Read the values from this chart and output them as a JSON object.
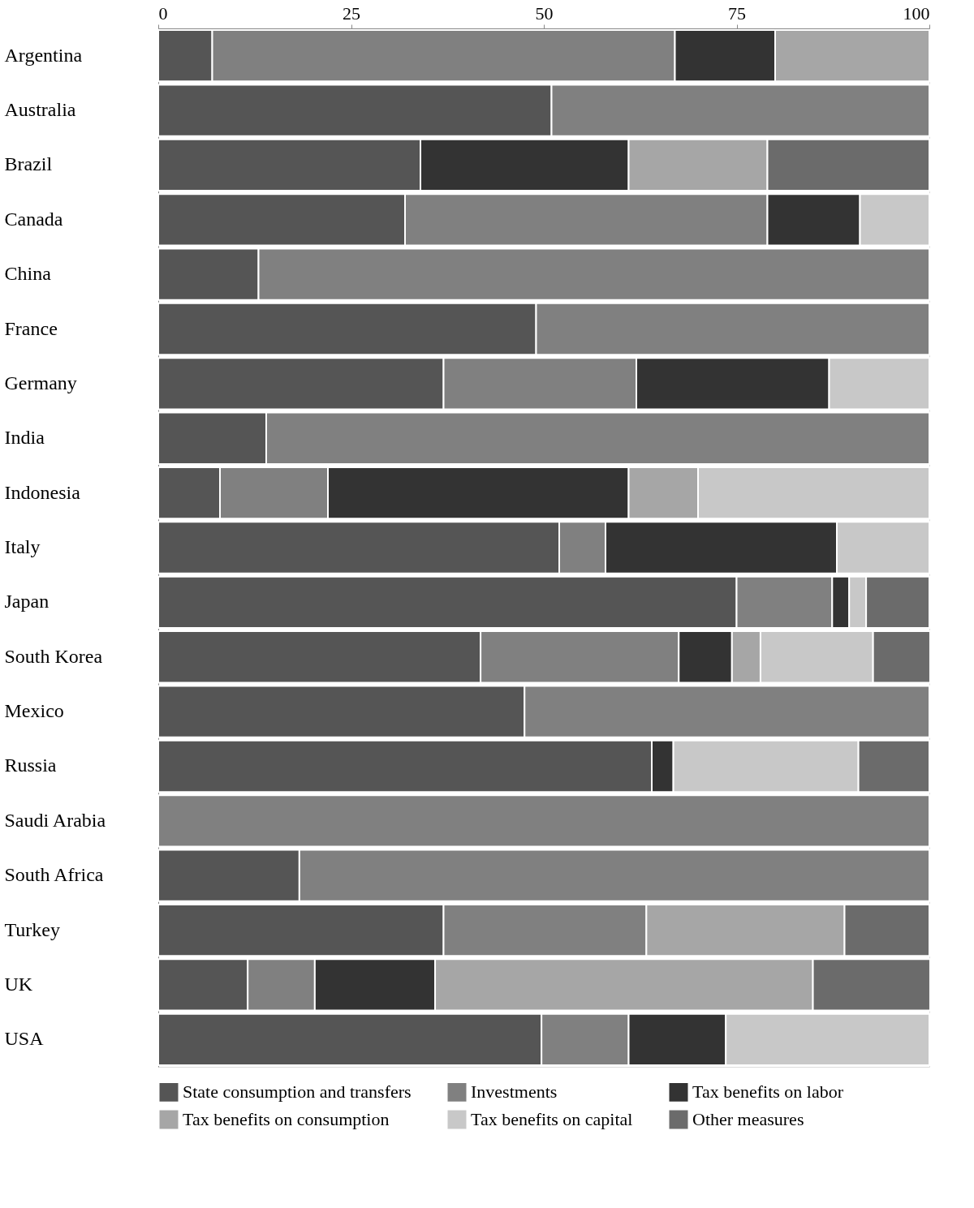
{
  "chart_data": {
    "type": "bar",
    "orientation": "horizontal",
    "stacked": true,
    "categories": [
      "Argentina",
      "Australia",
      "Brazil",
      "Canada",
      "China",
      "France",
      "Germany",
      "India",
      "Indonesia",
      "Italy",
      "Japan",
      "South Korea",
      "Mexico",
      "Russia",
      "Saudi Arabia",
      "South Africa",
      "Turkey",
      "UK",
      "USA"
    ],
    "series": [
      {
        "name": "State consumption and transfers",
        "color": "#555555",
        "values": [
          7,
          51,
          34,
          32,
          13,
          49,
          37,
          14,
          8,
          52,
          75,
          41.8,
          47.5,
          64,
          null,
          18.3,
          37,
          11.6,
          49.7
        ]
      },
      {
        "name": "Investments",
        "color": "#808080",
        "values": [
          60,
          49,
          null,
          47,
          87,
          51,
          25,
          86,
          14,
          6,
          12.4,
          25.7,
          52.5,
          null,
          100,
          81.7,
          26.3,
          8.7,
          11.3
        ]
      },
      {
        "name": "Tax benefits on labor",
        "color": "#333333",
        "values": [
          13,
          null,
          27,
          12,
          null,
          null,
          25,
          null,
          39,
          30,
          2.2,
          6.9,
          null,
          2.8,
          null,
          null,
          null,
          15.6,
          12.6
        ]
      },
      {
        "name": "Tax benefits on consumption",
        "color": "#a6a6a6",
        "values": [
          20,
          null,
          18,
          null,
          null,
          null,
          null,
          null,
          9,
          null,
          null,
          3.7,
          null,
          null,
          null,
          null,
          25.7,
          49,
          null
        ]
      },
      {
        "name": "Tax benefits on capital",
        "color": "#c8c8c8",
        "values": [
          null,
          null,
          null,
          9,
          null,
          null,
          13,
          null,
          30,
          12,
          2.2,
          14.6,
          null,
          24,
          null,
          null,
          null,
          null,
          26.4
        ]
      },
      {
        "name": "Other measures",
        "color": "#6b6b6b",
        "values": [
          null,
          null,
          21,
          null,
          null,
          null,
          null,
          null,
          null,
          null,
          8.2,
          7.4,
          null,
          9.2,
          null,
          null,
          11,
          15.2,
          null
        ]
      }
    ],
    "xlim": [
      0,
      100
    ],
    "xticks": [
      0,
      25,
      50,
      75,
      100
    ],
    "grid": false,
    "legend": "bottom"
  }
}
